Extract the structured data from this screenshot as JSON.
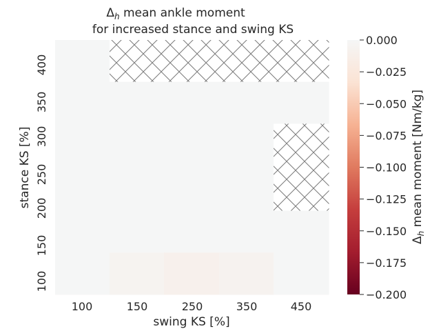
{
  "chart_data": {
    "type": "heatmap",
    "title_line1": "Δ",
    "title_sub": "h",
    "title_rest": " mean ankle moment",
    "title_line2": "for increased stance and swing KS",
    "xlabel": "swing KS [%]",
    "ylabel": "stance KS [%]",
    "x_categories": [
      "100",
      "150",
      "250",
      "350",
      "450"
    ],
    "y_categories": [
      "400",
      "350",
      "300",
      "250",
      "200",
      "150",
      "100"
    ],
    "y_tick_rows": [
      0,
      1,
      2,
      3,
      4,
      5,
      6
    ],
    "row_height_units": [
      0.65,
      0.65,
      0.35,
      0.65,
      0.35,
      0.65,
      0.65
    ],
    "values": [
      [
        0.0,
        null,
        null,
        null,
        null
      ],
      [
        0.0,
        0.0,
        0.0,
        0.0,
        0.0
      ],
      [
        0.0,
        0.0,
        0.0,
        0.0,
        null
      ],
      [
        0.0,
        0.0,
        0.0,
        0.0,
        null
      ],
      [
        0.0,
        0.0,
        0.0,
        0.0,
        null
      ],
      [
        0.0,
        0.0,
        0.0,
        0.0,
        0.0
      ],
      [
        0.0,
        -0.006,
        -0.01,
        -0.007,
        0.0
      ]
    ],
    "colorbar": {
      "label_main": "Δ",
      "label_sub": "h",
      "label_rest": " mean moment [Nm/kg]",
      "vmin": -0.2,
      "vmax": 0.0,
      "ticks": [
        0.0,
        -0.025,
        -0.05,
        -0.075,
        -0.1,
        -0.125,
        -0.15,
        -0.175,
        -0.2
      ],
      "tick_labels": [
        "0.000",
        "−0.025",
        "−0.050",
        "−0.075",
        "−0.100",
        "−0.125",
        "−0.150",
        "−0.175",
        "−0.200"
      ],
      "colormap": "RdBu_r (negative half)",
      "colors": [
        "#f5f6f6",
        "#fbe3d4",
        "#f6b293",
        "#e07a5f",
        "#c53e3d",
        "#a31d2e",
        "#67001f"
      ]
    },
    "missing_fill": "hatched"
  }
}
